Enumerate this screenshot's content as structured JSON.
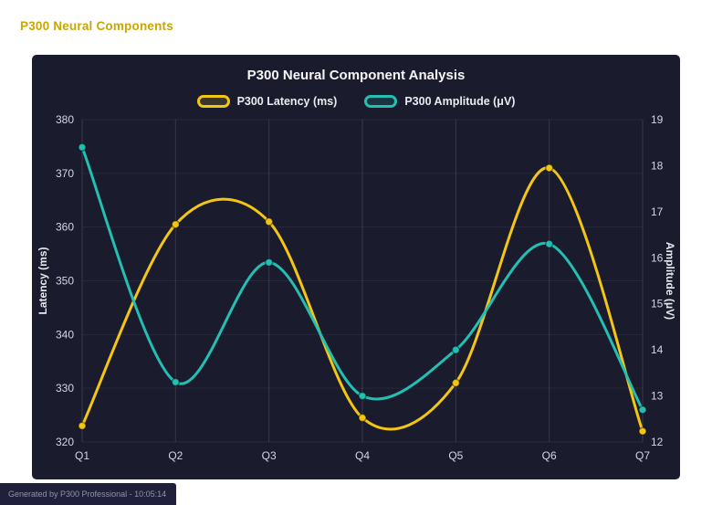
{
  "page": {
    "header_title": "P300 Neural Components",
    "footer_note": "Generated by P300 Professional - 10:05:14"
  },
  "colors": {
    "header_title": "#c9a600",
    "panel_background": "#1b1b2e",
    "latency_series": "#f4c614",
    "amplitude_series": "#23bfb3",
    "footer_background": "#20203a",
    "footer_text": "#8f93a8"
  },
  "chart_data": {
    "type": "line",
    "title": "P300 Neural Component Analysis",
    "categories": [
      "Q1",
      "Q2",
      "Q3",
      "Q4",
      "Q5",
      "Q6",
      "Q7"
    ],
    "series": [
      {
        "name": "P300 Latency (ms)",
        "axis": "left",
        "color": "#f4c614",
        "values": [
          323,
          360.5,
          361,
          324.5,
          331,
          371,
          322
        ]
      },
      {
        "name": "P300 Amplitude (μV)",
        "axis": "right",
        "color": "#23bfb3",
        "values": [
          18.4,
          13.3,
          15.9,
          13.0,
          14.0,
          16.3,
          12.7
        ]
      }
    ],
    "left_axis": {
      "label": "Latency (ms)",
      "min": 320,
      "max": 380,
      "ticks": [
        320,
        330,
        340,
        350,
        360,
        370,
        380
      ]
    },
    "right_axis": {
      "label": "Amplitude (μV)",
      "min": 12,
      "max": 19,
      "ticks": [
        12,
        13,
        14,
        15,
        16,
        17,
        18,
        19
      ]
    },
    "grid": true,
    "legend_position": "top",
    "line_tension": "smooth"
  }
}
